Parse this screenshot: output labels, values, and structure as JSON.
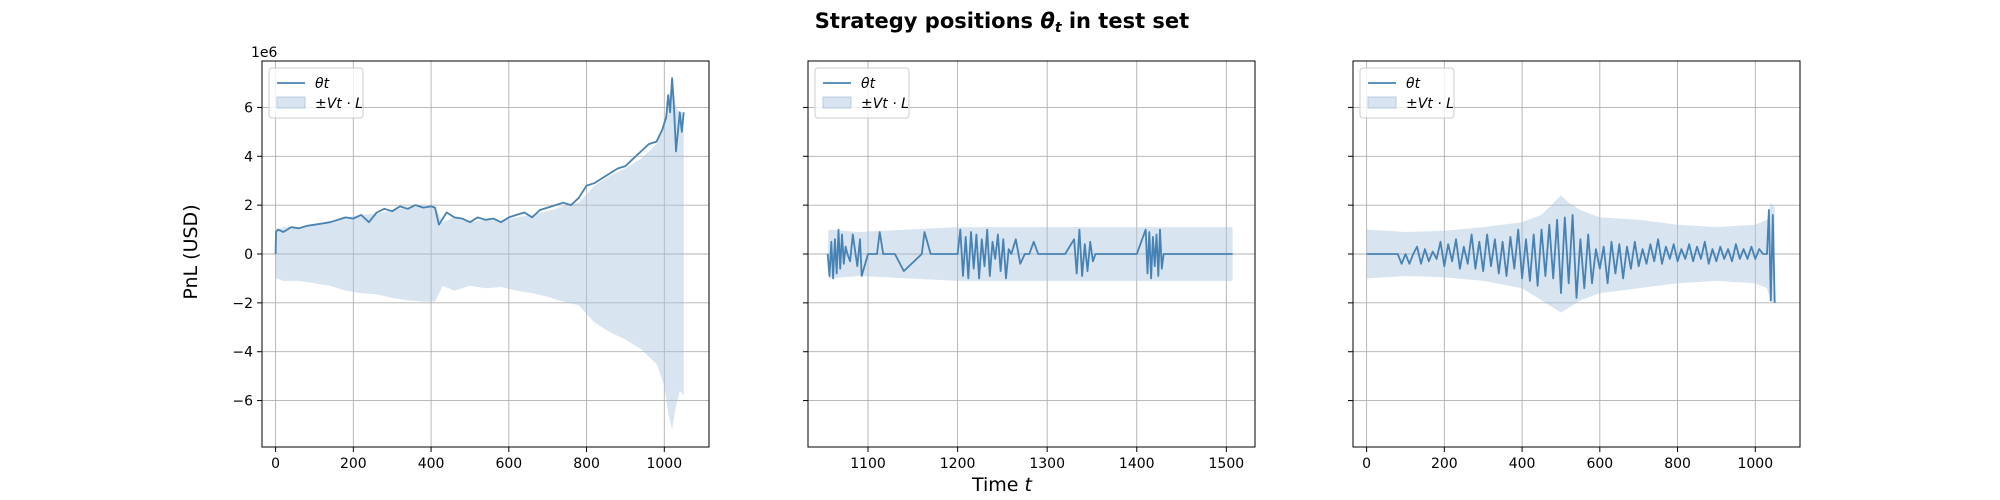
{
  "chart_data": {
    "type": "line",
    "title_parts": [
      "Strategy positions ",
      "θ",
      "t",
      " in test set"
    ],
    "xlabel_parts": [
      "Time ",
      "t"
    ],
    "ylabel": "PnL (USD)",
    "y_offset_label": "1e6",
    "ylim": [
      -7.9,
      7.9
    ],
    "yticks": [
      -6,
      -4,
      -2,
      0,
      2,
      4,
      6
    ],
    "ytick_labels": [
      "−6",
      "−4",
      "−2",
      "0",
      "2",
      "4",
      "6"
    ],
    "grid": true,
    "legend_placement": "upper left",
    "colors": {
      "line": "#4682b4",
      "band": "#a9c4de"
    },
    "legend": [
      "θt",
      "±Vt · L"
    ],
    "panels": [
      {
        "xlim": [
          -35,
          1115
        ],
        "xticks": [
          0,
          200,
          400,
          600,
          800,
          1000
        ],
        "series": [
          {
            "name": "θt",
            "kind": "line",
            "x": [
              0,
              1,
              6,
              20,
              40,
              60,
              80,
              100,
              120,
              140,
              160,
              180,
              200,
              220,
              240,
              260,
              280,
              300,
              320,
              340,
              360,
              380,
              400,
              410,
              420,
              440,
              460,
              480,
              500,
              520,
              540,
              560,
              580,
              600,
              620,
              640,
              660,
              680,
              700,
              720,
              740,
              760,
              780,
              800,
              820,
              840,
              860,
              880,
              900,
              920,
              940,
              960,
              980,
              995,
              1005,
              1010,
              1015,
              1020,
              1025,
              1030,
              1040,
              1045,
              1050
            ],
            "y": [
              0,
              0.9,
              1.0,
              0.9,
              1.1,
              1.05,
              1.15,
              1.2,
              1.25,
              1.3,
              1.4,
              1.5,
              1.45,
              1.6,
              1.3,
              1.7,
              1.85,
              1.75,
              1.95,
              1.85,
              2.0,
              1.9,
              1.95,
              1.9,
              1.2,
              1.7,
              1.5,
              1.45,
              1.3,
              1.5,
              1.4,
              1.45,
              1.3,
              1.5,
              1.6,
              1.7,
              1.5,
              1.8,
              1.9,
              2.0,
              2.1,
              2.0,
              2.3,
              2.8,
              2.9,
              3.1,
              3.3,
              3.5,
              3.6,
              3.9,
              4.2,
              4.5,
              4.6,
              5.1,
              5.6,
              6.5,
              5.8,
              7.2,
              6.0,
              4.2,
              5.8,
              5.0,
              5.8
            ]
          },
          {
            "name": "±Vt · L",
            "kind": "band",
            "x": [
              0,
              1,
              20,
              60,
              100,
              140,
              180,
              220,
              260,
              300,
              340,
              380,
              410,
              430,
              460,
              500,
              540,
              580,
              620,
              660,
              700,
              740,
              780,
              820,
              860,
              900,
              940,
              980,
              1000,
              1010,
              1020,
              1030,
              1040,
              1050
            ],
            "upper": [
              0,
              1.0,
              1.1,
              1.1,
              1.2,
              1.3,
              1.5,
              1.6,
              1.65,
              1.8,
              1.9,
              1.95,
              1.95,
              1.3,
              1.5,
              1.3,
              1.4,
              1.35,
              1.5,
              1.6,
              1.75,
              1.95,
              2.1,
              2.8,
              3.2,
              3.5,
              3.9,
              4.5,
              5.4,
              6.2,
              7.2,
              6.0,
              5.8,
              5.8
            ],
            "lower": [
              0,
              -1.0,
              -1.1,
              -1.1,
              -1.2,
              -1.3,
              -1.5,
              -1.6,
              -1.65,
              -1.8,
              -1.9,
              -1.95,
              -1.95,
              -1.3,
              -1.5,
              -1.3,
              -1.4,
              -1.35,
              -1.5,
              -1.6,
              -1.75,
              -1.95,
              -2.1,
              -2.8,
              -3.2,
              -3.5,
              -3.9,
              -4.5,
              -5.4,
              -6.5,
              -7.2,
              -6.2,
              -5.6,
              -5.8
            ]
          }
        ]
      },
      {
        "xlim": [
          1033,
          1532
        ],
        "xticks": [
          1100,
          1200,
          1300,
          1400,
          1500
        ],
        "series": [
          {
            "name": "θt",
            "kind": "line",
            "x": [
              1055,
              1057,
              1059,
              1061,
              1063,
              1065,
              1067,
              1069,
              1071,
              1073,
              1075,
              1077,
              1080,
              1083,
              1088,
              1091,
              1093,
              1100,
              1110,
              1113,
              1117,
              1130,
              1140,
              1160,
              1163,
              1170,
              1200,
              1203,
              1206,
              1209,
              1212,
              1215,
              1218,
              1221,
              1224,
              1227,
              1230,
              1233,
              1236,
              1239,
              1242,
              1245,
              1248,
              1251,
              1254,
              1257,
              1260,
              1265,
              1270,
              1275,
              1280,
              1285,
              1290,
              1300,
              1320,
              1330,
              1333,
              1336,
              1339,
              1342,
              1345,
              1348,
              1351,
              1354,
              1360,
              1400,
              1410,
              1412,
              1414,
              1416,
              1418,
              1420,
              1422,
              1424,
              1426,
              1428,
              1430,
              1440,
              1500,
              1507
            ],
            "y": [
              0,
              -0.9,
              0.5,
              -1.0,
              0.6,
              -0.8,
              1.0,
              -0.6,
              0.8,
              -0.4,
              0.3,
              0.0,
              -0.3,
              0.8,
              -0.5,
              0.6,
              -0.9,
              0.0,
              0.0,
              0.9,
              0.0,
              0.0,
              -0.7,
              0.0,
              0.9,
              0.0,
              0.0,
              1.0,
              -0.9,
              0.7,
              -1.0,
              0.9,
              -0.6,
              0.8,
              -1.0,
              0.6,
              -0.5,
              1.0,
              -0.9,
              0.5,
              -0.2,
              0.8,
              -0.7,
              0.6,
              -1.0,
              0.2,
              0.0,
              0.6,
              -0.4,
              0.0,
              0.0,
              0.5,
              0.0,
              0.0,
              0.0,
              0.6,
              -0.8,
              1.0,
              -0.9,
              0.4,
              -0.7,
              0.5,
              -0.3,
              0.0,
              0.0,
              0.0,
              1.0,
              -0.8,
              0.9,
              -1.0,
              0.7,
              -0.5,
              0.8,
              -0.9,
              1.0,
              -0.6,
              0.0,
              0.0,
              0.0,
              0.0
            ]
          },
          {
            "name": "±Vt · L",
            "kind": "band",
            "x": [
              1055,
              1056,
              1090,
              1200,
              1207
            ],
            "upper": [
              0,
              1.0,
              0.9,
              1.1,
              1.1
            ],
            "lower": [
              0,
              -1.0,
              -0.9,
              -1.1,
              -1.1
            ],
            "note_x_end": 1507
          }
        ]
      },
      {
        "xlim": [
          -35,
          1115
        ],
        "xticks": [
          0,
          200,
          400,
          600,
          800,
          1000
        ],
        "series": [
          {
            "name": "θt",
            "kind": "line",
            "x": [
              0,
              80,
              90,
              100,
              110,
              120,
              130,
              140,
              150,
              160,
              170,
              180,
              190,
              200,
              210,
              220,
              230,
              240,
              250,
              260,
              270,
              280,
              290,
              300,
              310,
              320,
              330,
              340,
              350,
              360,
              370,
              380,
              390,
              400,
              410,
              420,
              430,
              440,
              450,
              460,
              470,
              480,
              490,
              500,
              510,
              520,
              530,
              540,
              550,
              560,
              570,
              580,
              590,
              600,
              610,
              620,
              630,
              640,
              650,
              660,
              670,
              680,
              690,
              700,
              710,
              720,
              730,
              740,
              750,
              760,
              770,
              780,
              790,
              800,
              810,
              820,
              830,
              840,
              850,
              860,
              870,
              880,
              890,
              900,
              910,
              920,
              930,
              940,
              950,
              960,
              970,
              980,
              990,
              1000,
              1010,
              1020,
              1030,
              1035,
              1040,
              1045,
              1050
            ],
            "y": [
              0,
              0,
              -0.4,
              0,
              -0.4,
              0,
              0.3,
              -0.4,
              0.2,
              -0.3,
              0.1,
              -0.2,
              0.5,
              -0.5,
              0.4,
              -0.3,
              0.6,
              -0.6,
              0.3,
              -0.4,
              0.8,
              -0.6,
              0.5,
              -0.7,
              0.8,
              -0.5,
              0.6,
              -0.8,
              0.5,
              -0.9,
              0.7,
              -0.6,
              1.0,
              -1.0,
              0.6,
              -1.1,
              0.8,
              -1.3,
              1.0,
              -0.9,
              1.2,
              -1.0,
              1.4,
              -1.6,
              1.5,
              -1.2,
              1.6,
              -1.8,
              0.6,
              -1.4,
              0.8,
              -1.2,
              0.2,
              -0.6,
              0.3,
              -1.2,
              0.5,
              -0.8,
              0.4,
              -1.0,
              0.3,
              -0.6,
              0.5,
              -0.5,
              0.2,
              -0.4,
              0.4,
              -0.3,
              0.6,
              -0.4,
              0.3,
              -0.2,
              0.4,
              -0.3,
              0.2,
              -0.2,
              0.4,
              -0.3,
              0.3,
              -0.2,
              0.5,
              -0.4,
              0.2,
              -0.3,
              0.3,
              -0.2,
              0.2,
              -0.3,
              0.4,
              -0.2,
              0.2,
              -0.2,
              0.3,
              -0.2,
              0.2,
              0.0,
              0.0,
              1.8,
              -1.9,
              1.6,
              -2.0
            ]
          },
          {
            "name": "±Vt · L",
            "kind": "band",
            "x": [
              0,
              1,
              100,
              200,
              300,
              400,
              450,
              500,
              520,
              550,
              600,
              700,
              800,
              900,
              1000,
              1030,
              1040,
              1050
            ],
            "upper": [
              0,
              1.0,
              0.9,
              0.95,
              1.1,
              1.3,
              1.6,
              2.4,
              2.1,
              1.8,
              1.5,
              1.4,
              1.2,
              1.1,
              1.2,
              1.4,
              2.1,
              1.9
            ],
            "lower": [
              0,
              -1.0,
              -0.9,
              -0.95,
              -1.1,
              -1.4,
              -1.9,
              -2.4,
              -2.2,
              -1.9,
              -1.6,
              -1.4,
              -1.2,
              -1.1,
              -1.2,
              -1.4,
              -2.0,
              -1.9
            ]
          }
        ]
      }
    ]
  }
}
